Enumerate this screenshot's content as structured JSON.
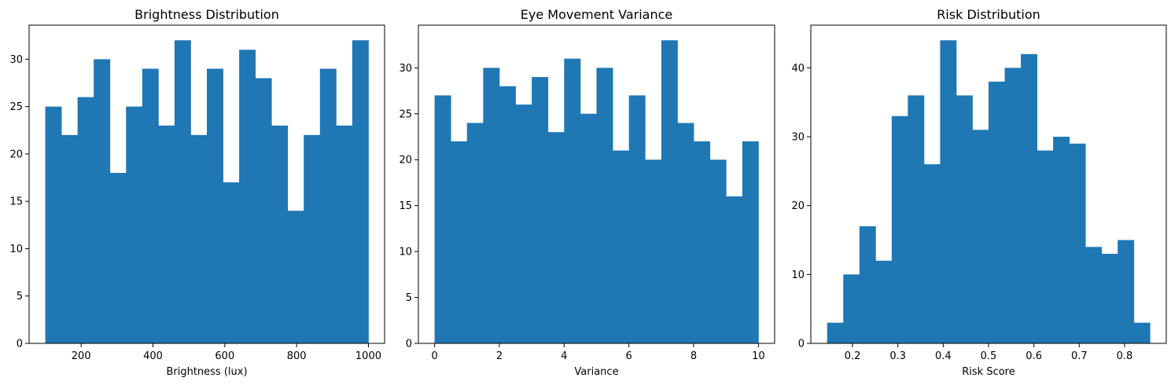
{
  "bar_color": "#1f77b4",
  "chart_data": [
    {
      "type": "bar",
      "title": "Brightness Distribution",
      "xlabel": "Brightness (lux)",
      "ylabel": "",
      "xlim": [
        55,
        1045
      ],
      "ylim": [
        0,
        33.6
      ],
      "xticks": [
        200,
        400,
        600,
        800,
        1000
      ],
      "yticks": [
        0,
        5,
        10,
        15,
        20,
        25,
        30
      ],
      "bin_start": 100,
      "bin_width": 45,
      "values": [
        25,
        22,
        26,
        30,
        18,
        25,
        29,
        23,
        32,
        22,
        29,
        17,
        31,
        28,
        23,
        14,
        22,
        29,
        23,
        32
      ]
    },
    {
      "type": "bar",
      "title": "Eye Movement Variance",
      "xlabel": "Variance",
      "ylabel": "",
      "xlim": [
        -0.5,
        10.5
      ],
      "ylim": [
        0,
        34.65
      ],
      "xticks": [
        0,
        2,
        4,
        6,
        8,
        10
      ],
      "yticks": [
        0,
        5,
        10,
        15,
        20,
        25,
        30
      ],
      "bin_start": 0,
      "bin_width": 0.5,
      "values": [
        27,
        22,
        24,
        30,
        28,
        26,
        29,
        23,
        31,
        25,
        30,
        21,
        27,
        20,
        33,
        24,
        22,
        20,
        16,
        22
      ]
    },
    {
      "type": "bar",
      "title": "Risk Distribution",
      "xlabel": "Risk Score",
      "ylabel": "",
      "xlim": [
        0.108,
        0.892
      ],
      "ylim": [
        0,
        46.2
      ],
      "xticks": [
        0.2,
        0.3,
        0.4,
        0.5,
        0.6,
        0.7,
        0.8
      ],
      "yticks": [
        0,
        10,
        20,
        30,
        40
      ],
      "bin_start": 0.144,
      "bin_width": 0.0356,
      "values": [
        3,
        10,
        17,
        12,
        33,
        36,
        26,
        44,
        36,
        31,
        38,
        40,
        42,
        28,
        30,
        29,
        14,
        13,
        15,
        3
      ]
    }
  ]
}
